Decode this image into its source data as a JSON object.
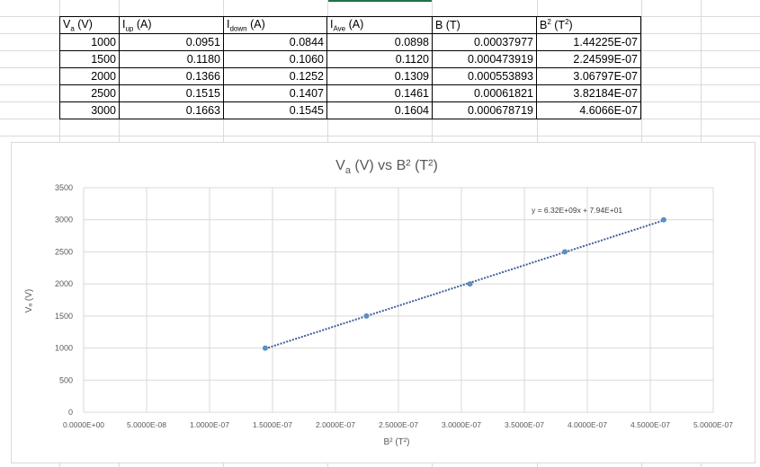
{
  "table": {
    "headers": [
      {
        "main": "V",
        "sub": "a",
        "sup": "",
        "unit": " (V)"
      },
      {
        "main": "I",
        "sub": "up",
        "sup": "",
        "unit": " (A)"
      },
      {
        "main": "I",
        "sub": "down",
        "sup": "",
        "unit": " (A)"
      },
      {
        "main": "I",
        "sub": "Ave",
        "sup": "",
        "unit": " (A)"
      },
      {
        "main": "B (T)",
        "sub": "",
        "sup": "",
        "unit": ""
      },
      {
        "main": "B",
        "sub": "",
        "sup": "2",
        "unit": " (T",
        "unit_sup": "2",
        "unit_end": ")"
      }
    ],
    "rows": [
      [
        "1000",
        "0.0951",
        "0.0844",
        "0.0898",
        "0.00037977",
        "1.44225E-07"
      ],
      [
        "1500",
        "0.1180",
        "0.1060",
        "0.1120",
        "0.000473919",
        "2.24599E-07"
      ],
      [
        "2000",
        "0.1366",
        "0.1252",
        "0.1309",
        "0.000553893",
        "3.06797E-07"
      ],
      [
        "2500",
        "0.1515",
        "0.1407",
        "0.1461",
        "0.00061821",
        "3.82184E-07"
      ],
      [
        "3000",
        "0.1663",
        "0.1545",
        "0.1604",
        "0.000678719",
        "4.6066E-07"
      ]
    ]
  },
  "chart_data": {
    "type": "scatter",
    "title": "Va (V) vs B² (T²)",
    "title_parts": {
      "main": "V",
      "sub": "a",
      "rest": " (V) vs B² (T²)"
    },
    "xlabel": "B² (T²)",
    "ylabel": "Vₐ (V)",
    "xlim": [
      0,
      5e-07
    ],
    "ylim": [
      0,
      3500
    ],
    "x_ticks": [
      "0.0000E+00",
      "5.0000E-08",
      "1.0000E-07",
      "1.5000E-07",
      "2.0000E-07",
      "2.5000E-07",
      "3.0000E-07",
      "3.5000E-07",
      "4.0000E-07",
      "4.5000E-07",
      "5.0000E-07"
    ],
    "y_ticks": [
      "0",
      "500",
      "1000",
      "1500",
      "2000",
      "2500",
      "3000",
      "3500"
    ],
    "grid": true,
    "series": [
      {
        "x": [
          1.44225e-07,
          2.24599e-07,
          3.06797e-07,
          3.82184e-07,
          4.6066e-07
        ],
        "y": [
          1000,
          1500,
          2000,
          2500,
          3000
        ],
        "color": "#5b8fc3"
      }
    ],
    "trendline": {
      "type": "linear",
      "slope": 6320000000.0,
      "intercept": 79.4,
      "equation": "y = 6.32E+09x + 7.94E+01",
      "color": "#3f5f9a"
    }
  }
}
